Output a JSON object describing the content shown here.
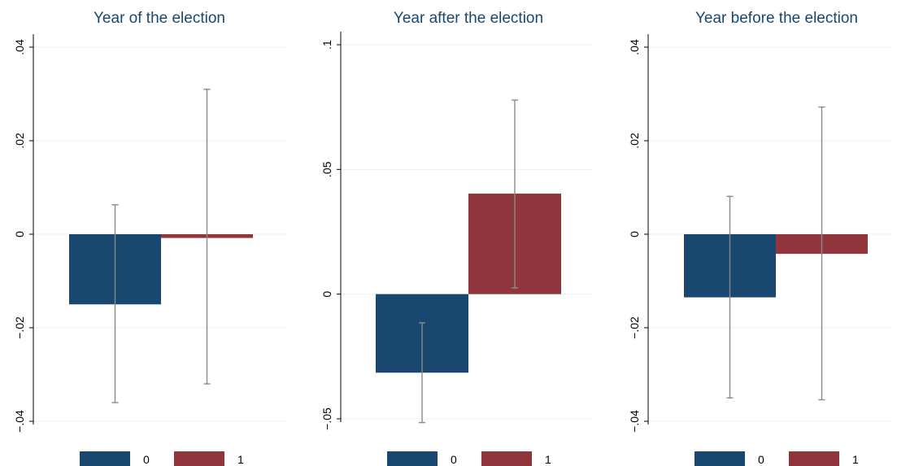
{
  "colors": {
    "series_0": "#1a476f",
    "series_1": "#90353b",
    "title": "#1a476f",
    "error_bar": "#8a8a8a",
    "grid": "#eaf2f3"
  },
  "chart_data": [
    {
      "type": "bar",
      "title": "Year of the election",
      "xlabel": "",
      "ylabel": "",
      "ylim": [
        -0.04,
        0.04
      ],
      "yticks": [
        -0.04,
        -0.02,
        0,
        0.02,
        0.04
      ],
      "ytick_labels": [
        "−.04",
        "−.02",
        "0",
        ".02",
        ".04"
      ],
      "grid": true,
      "legend": "bottom",
      "series": [
        {
          "name": "0",
          "value": -0.015,
          "ci": [
            -0.036,
            0.0063
          ]
        },
        {
          "name": "1",
          "value": -0.0008,
          "ci": [
            -0.032,
            0.031
          ]
        }
      ]
    },
    {
      "type": "bar",
      "title": "Year after the election",
      "xlabel": "",
      "ylabel": "",
      "ylim": [
        -0.05,
        0.1
      ],
      "yticks": [
        -0.05,
        0,
        0.05,
        0.1
      ],
      "ytick_labels": [
        "−.05",
        "0",
        ".05",
        ".1"
      ],
      "grid": true,
      "legend": "bottom",
      "series": [
        {
          "name": "0",
          "value": -0.0315,
          "ci": [
            -0.0515,
            -0.0115
          ]
        },
        {
          "name": "1",
          "value": 0.0403,
          "ci": [
            0.0025,
            0.0778
          ]
        }
      ]
    },
    {
      "type": "bar",
      "title": "Year before the election",
      "xlabel": "",
      "ylabel": "",
      "ylim": [
        -0.04,
        0.04
      ],
      "yticks": [
        -0.04,
        -0.02,
        0,
        0.02,
        0.04
      ],
      "ytick_labels": [
        "−.04",
        "−.02",
        "0",
        ".02",
        ".04"
      ],
      "grid": true,
      "legend": "bottom",
      "series": [
        {
          "name": "0",
          "value": -0.0135,
          "ci": [
            -0.035,
            0.0081
          ]
        },
        {
          "name": "1",
          "value": -0.0042,
          "ci": [
            -0.0354,
            0.0272
          ]
        }
      ]
    }
  ]
}
